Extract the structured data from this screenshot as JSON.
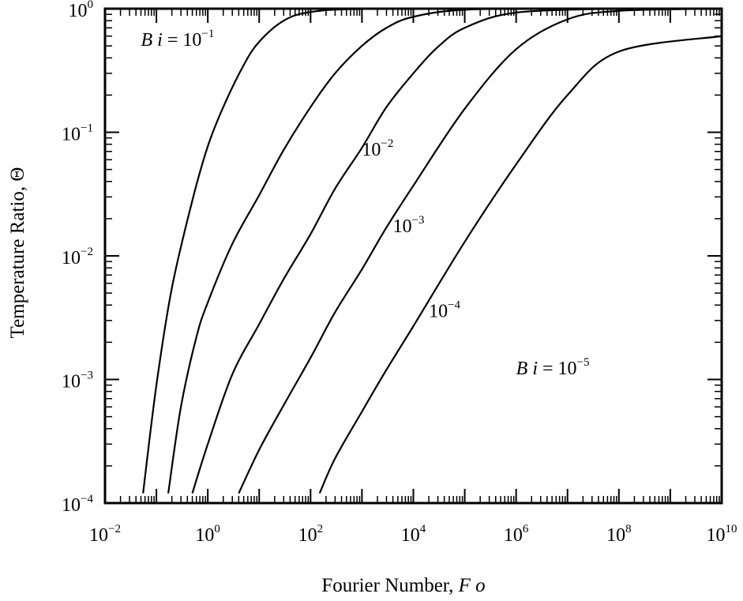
{
  "chart_data": {
    "type": "line",
    "title": "",
    "xlabel_text": "Fourier Number, ",
    "xlabel_symbol": "F o",
    "ylabel": "Temperature Ratio, Θ",
    "xscale": "log",
    "yscale": "log",
    "xlim": [
      0.01,
      10000000000
    ],
    "ylim": [
      0.0001,
      1
    ],
    "grid": false,
    "legend": "none",
    "x_ticks": [
      {
        "base": "10",
        "exp": "−2",
        "value": 0.01
      },
      {
        "base": "10",
        "exp": "0",
        "value": 1
      },
      {
        "base": "10",
        "exp": "2",
        "value": 100
      },
      {
        "base": "10",
        "exp": "4",
        "value": 10000
      },
      {
        "base": "10",
        "exp": "6",
        "value": 1000000
      },
      {
        "base": "10",
        "exp": "8",
        "value": 100000000
      },
      {
        "base": "10",
        "exp": "10",
        "value": 10000000000
      }
    ],
    "y_ticks": [
      {
        "base": "10",
        "exp": "0",
        "value": 1
      },
      {
        "base": "10",
        "exp": "−1",
        "value": 0.1
      },
      {
        "base": "10",
        "exp": "−2",
        "value": 0.01
      },
      {
        "base": "10",
        "exp": "−3",
        "value": 0.001
      },
      {
        "base": "10",
        "exp": "−4",
        "value": 0.0001
      }
    ],
    "series": [
      {
        "Bi": 0.1,
        "points": [
          [
            0.055,
            0.00012
          ],
          [
            0.1,
            0.0009
          ],
          [
            0.2,
            0.0055
          ],
          [
            0.5,
            0.028
          ],
          [
            1,
            0.077
          ],
          [
            2,
            0.16
          ],
          [
            5,
            0.35
          ],
          [
            10,
            0.54
          ],
          [
            30,
            0.8
          ],
          [
            100,
            0.94
          ],
          [
            1000,
            0.995
          ],
          [
            1000000,
            1
          ]
        ]
      },
      {
        "Bi": 0.01,
        "points": [
          [
            0.17,
            0.00012
          ],
          [
            0.3,
            0.0006
          ],
          [
            0.6,
            0.0022
          ],
          [
            1,
            0.0042
          ],
          [
            3,
            0.0125
          ],
          [
            10,
            0.031
          ],
          [
            30,
            0.072
          ],
          [
            100,
            0.16
          ],
          [
            300,
            0.3
          ],
          [
            1000,
            0.5
          ],
          [
            3000,
            0.7
          ],
          [
            10000,
            0.86
          ],
          [
            100000,
            0.98
          ],
          [
            10000000,
            1
          ]
        ]
      },
      {
        "Bi": 0.001,
        "points": [
          [
            0.5,
            0.00012
          ],
          [
            1,
            0.0003
          ],
          [
            3,
            0.0011
          ],
          [
            10,
            0.0028
          ],
          [
            30,
            0.0065
          ],
          [
            100,
            0.015
          ],
          [
            300,
            0.035
          ],
          [
            1000,
            0.075
          ],
          [
            3000,
            0.16
          ],
          [
            10000,
            0.3
          ],
          [
            30000,
            0.49
          ],
          [
            100000,
            0.7
          ],
          [
            1000000,
            0.93
          ],
          [
            100000000,
            1
          ]
        ]
      },
      {
        "Bi": 0.0001,
        "points": [
          [
            4,
            0.00012
          ],
          [
            10,
            0.00027
          ],
          [
            30,
            0.00062
          ],
          [
            100,
            0.0015
          ],
          [
            300,
            0.0035
          ],
          [
            1000,
            0.0078
          ],
          [
            3000,
            0.017
          ],
          [
            10000,
            0.037
          ],
          [
            100000,
            0.155
          ],
          [
            1000000,
            0.47
          ],
          [
            10000000,
            0.82
          ],
          [
            100000000,
            0.96
          ],
          [
            10000000000,
            1
          ]
        ]
      },
      {
        "Bi": 1e-05,
        "points": [
          [
            150,
            0.00012
          ],
          [
            300,
            0.00023
          ],
          [
            1000,
            0.00055
          ],
          [
            3000,
            0.0012
          ],
          [
            10000,
            0.0027
          ],
          [
            100000,
            0.013
          ],
          [
            1000000,
            0.055
          ],
          [
            10000000,
            0.2
          ],
          [
            100000000,
            0.45
          ],
          [
            10000000000,
            0.6
          ]
        ]
      }
    ],
    "annotations": [
      {
        "prefix": "B i",
        "eq": " = 10",
        "exp": "−1",
        "series": 0,
        "x": 0.05,
        "y": 0.5
      },
      {
        "prefix": "",
        "eq": "10",
        "exp": "−2",
        "series": 1,
        "x": 1000,
        "y": 0.065
      },
      {
        "prefix": "",
        "eq": "10",
        "exp": "−3",
        "series": 2,
        "x": 4000,
        "y": 0.0155
      },
      {
        "prefix": "",
        "eq": "10",
        "exp": "−4",
        "series": 3,
        "x": 20000,
        "y": 0.0032
      },
      {
        "prefix": "B i",
        "eq": " = 10",
        "exp": "−5",
        "series": 4,
        "x": 1000000,
        "y": 0.0011
      }
    ]
  }
}
